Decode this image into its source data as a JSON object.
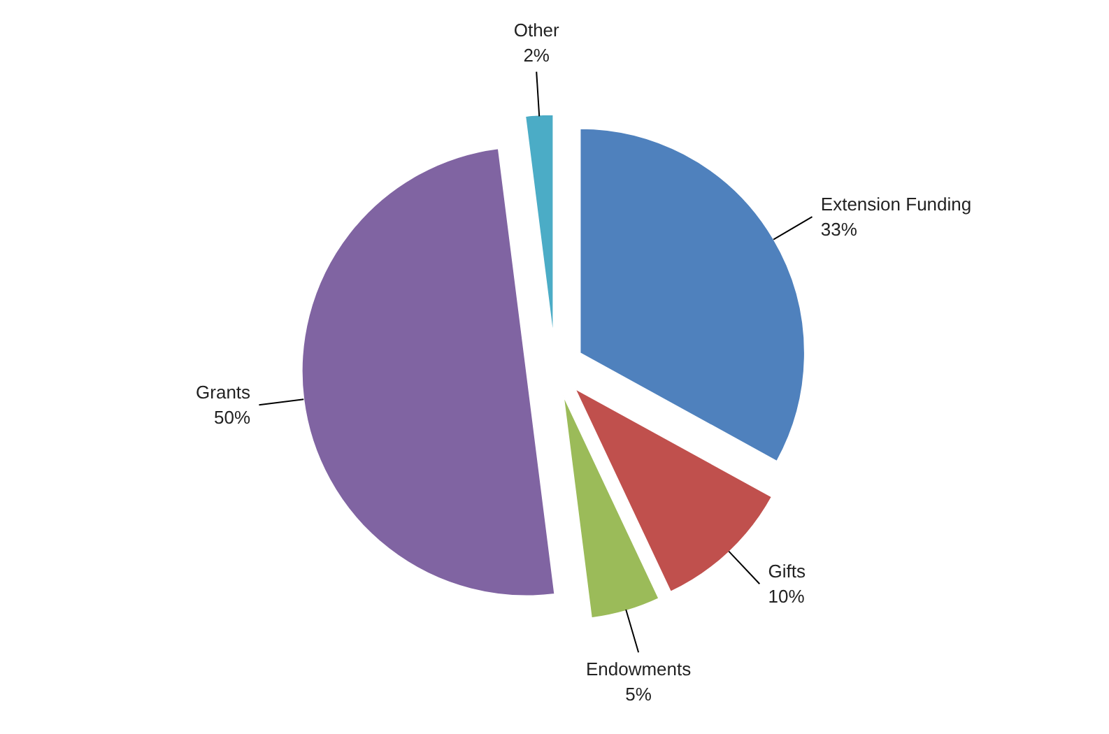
{
  "chart_data": {
    "type": "pie",
    "categories": [
      "Extension Funding",
      "Gifts",
      "Endowments",
      "Grants",
      "Other"
    ],
    "values": [
      33,
      10,
      5,
      50,
      2
    ],
    "colors": [
      "#4f81bd",
      "#c0504d",
      "#9bbb59",
      "#8064a2",
      "#4bacc6"
    ],
    "value_labels": [
      "33%",
      "10%",
      "5%",
      "50%",
      "2%"
    ]
  }
}
